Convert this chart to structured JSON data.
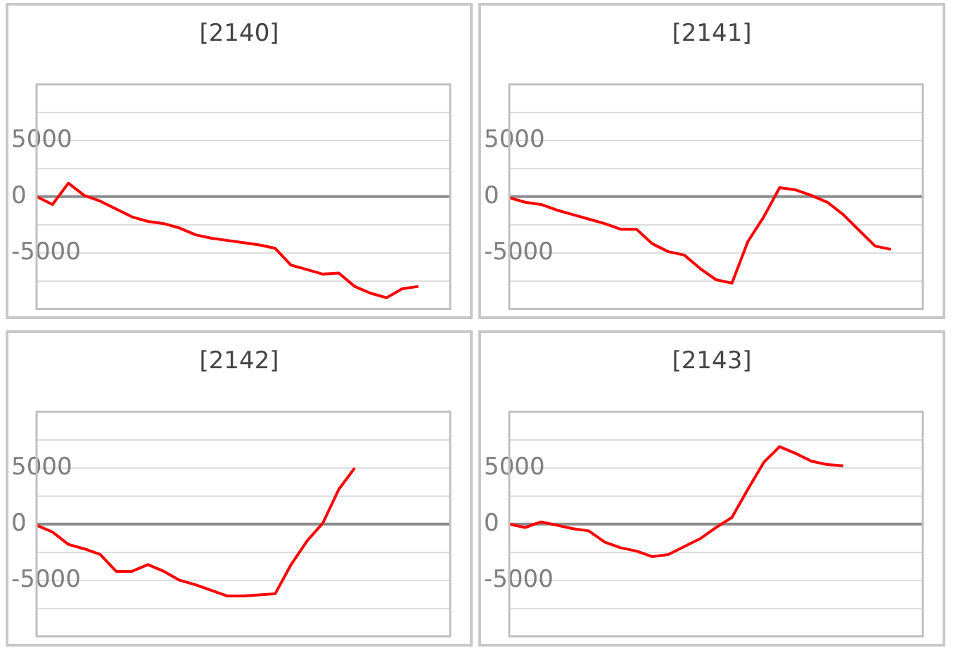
{
  "chart_data": [
    {
      "type": "line",
      "title": "[2140]",
      "categories": [
        null,
        null,
        null,
        null,
        null,
        null,
        null,
        null,
        null,
        null,
        null,
        null,
        null,
        null,
        null,
        null,
        null,
        null,
        null,
        null,
        null,
        null,
        null,
        null,
        null,
        null,
        null
      ],
      "series": [
        {
          "color": "#ff0000",
          "values": [
            0,
            -700,
            1200,
            100,
            -400,
            -1100,
            -1800,
            -2200,
            -2400,
            -2800,
            -3400,
            -3700,
            -3900,
            -4100,
            -4300,
            -4600,
            -6100,
            -6500,
            -6900,
            -6800,
            -8000,
            -8600,
            -9000,
            -8200,
            -8000,
            null,
            null
          ]
        }
      ],
      "ylim": [
        -10000,
        10000
      ],
      "yticks": [
        {
          "value": 7500,
          "label": null
        },
        5000,
        {
          "value": 2500,
          "label": null
        },
        0,
        {
          "value": -2500,
          "label": null
        },
        -5000,
        {
          "value": -7500,
          "label": null
        }
      ],
      "grid": "y",
      "marker": "none",
      "line_style": "solid"
    },
    {
      "type": "line",
      "title": "[2141]",
      "categories": [
        null,
        null,
        null,
        null,
        null,
        null,
        null,
        null,
        null,
        null,
        null,
        null,
        null,
        null,
        null,
        null,
        null,
        null,
        null,
        null,
        null,
        null,
        null,
        null,
        null,
        null,
        null
      ],
      "series": [
        {
          "color": "#ff0000",
          "values": [
            -100,
            -500,
            -700,
            -1200,
            -1600,
            -2000,
            -2400,
            -2900,
            -2900,
            -4200,
            -4900,
            -5200,
            -6400,
            -7400,
            -7700,
            -4000,
            -1800,
            800,
            600,
            100,
            -500,
            -1600,
            -3000,
            -4400,
            -4700,
            null,
            null
          ]
        }
      ],
      "ylim": [
        -10000,
        10000
      ],
      "yticks": [
        {
          "value": 7500,
          "label": null
        },
        5000,
        {
          "value": 2500,
          "label": null
        },
        0,
        {
          "value": -2500,
          "label": null
        },
        -5000,
        {
          "value": -7500,
          "label": null
        }
      ],
      "grid": "y",
      "marker": "none",
      "line_style": "solid"
    },
    {
      "type": "line",
      "title": "[2142]",
      "categories": [
        null,
        null,
        null,
        null,
        null,
        null,
        null,
        null,
        null,
        null,
        null,
        null,
        null,
        null,
        null,
        null,
        null,
        null,
        null,
        null,
        null,
        null,
        null,
        null,
        null,
        null,
        null
      ],
      "series": [
        {
          "color": "#ff0000",
          "values": [
            -100,
            -700,
            -1800,
            -2200,
            -2700,
            -4200,
            -4200,
            -3600,
            -4200,
            -5000,
            -5400,
            -5900,
            -6400,
            -6400,
            -6300,
            -6200,
            -3600,
            -1500,
            100,
            3100,
            5000,
            null,
            null,
            null,
            null,
            null,
            null
          ]
        }
      ],
      "ylim": [
        -10000,
        10000
      ],
      "yticks": [
        {
          "value": 7500,
          "label": null
        },
        5000,
        {
          "value": 2500,
          "label": null
        },
        0,
        {
          "value": -2500,
          "label": null
        },
        -5000,
        {
          "value": -7500,
          "label": null
        }
      ],
      "grid": "y",
      "marker": "none",
      "line_style": "solid"
    },
    {
      "type": "line",
      "title": "[2143]",
      "categories": [
        null,
        null,
        null,
        null,
        null,
        null,
        null,
        null,
        null,
        null,
        null,
        null,
        null,
        null,
        null,
        null,
        null,
        null,
        null,
        null,
        null,
        null,
        null,
        null,
        null,
        null,
        null
      ],
      "series": [
        {
          "color": "#ff0000",
          "values": [
            0,
            -300,
            200,
            -100,
            -400,
            -600,
            -1600,
            -2100,
            -2400,
            -2900,
            -2700,
            -2000,
            -1300,
            -300,
            600,
            3100,
            5500,
            6900,
            6300,
            5600,
            5300,
            5200,
            null,
            null,
            null,
            null,
            null
          ]
        }
      ],
      "ylim": [
        -10000,
        10000
      ],
      "yticks": [
        {
          "value": 7500,
          "label": null
        },
        5000,
        {
          "value": 2500,
          "label": null
        },
        0,
        {
          "value": -2500,
          "label": null
        },
        -5000,
        {
          "value": -7500,
          "label": null
        }
      ],
      "grid": "y",
      "marker": "none",
      "line_style": "solid"
    }
  ]
}
